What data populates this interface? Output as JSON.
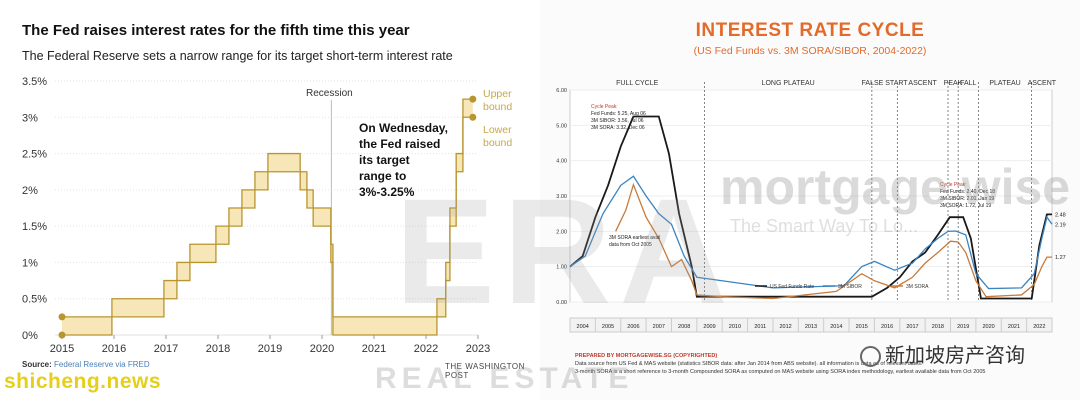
{
  "left": {
    "title": "The Fed raises interest rates for the fifth time this year",
    "subtitle": "The Federal Reserve sets a narrow range for its target short-term interest rate",
    "source_label": "Source:",
    "source_value": "Federal Reserve via FRED",
    "credit": "THE WASHINGTON POST"
  },
  "right": {
    "title": "INTEREST RATE CYCLE",
    "subtitle": "(US Fed Funds vs. 3M SORA/SIBOR, 2004-2022)",
    "footer_label": "PREPARED BY MORTGAGEWISE.SG (COPYRIGHTED)",
    "footer_lines": [
      "Data source from US Fed & MAS website (statistics SIBOR data: after Jan 2014 from ABS website). all information is data as of relevant dates.",
      "3-month SORA is a short reference to 3-month Compounded SORA as computed on MAS website using SORA index methodology, earliest available data from Oct 2005"
    ]
  },
  "watermarks": {
    "era": "ERA",
    "real_estate": "REAL ESTATE",
    "mortgage": "mortgage wise",
    "tagline": "The Smart Way To Lo...",
    "site": "shicheng.news",
    "wechat": "新加坡房产咨询"
  },
  "colors": {
    "fed_line": "#b8952f",
    "fed_fill": "#f7e7b8",
    "fed_label": "#c8a84b",
    "orange_title": "#e26b2c",
    "fedfunds": "#1a1a1a",
    "sibor": "#3b83c0",
    "sora": "#c77a3a",
    "phase_line": "#333333"
  },
  "chart_data": [
    {
      "type": "area",
      "title": "The Fed raises interest rates for the fifth time this year",
      "subtitle": "The Federal Reserve sets a narrow range for its target short-term interest rate",
      "x_ticks": [
        "2015",
        "2016",
        "2017",
        "2018",
        "2019",
        "2020",
        "2021",
        "2022",
        "2023"
      ],
      "y_ticks": [
        "0%",
        "0.5%",
        "1%",
        "1.5%",
        "2%",
        "2.5%",
        "3%",
        "3.5%"
      ],
      "ylim": [
        0,
        3.5
      ],
      "xlim": [
        2015,
        2023
      ],
      "grid": true,
      "series": [
        {
          "name": "Upper bound",
          "x": [
            2015.0,
            2015.96,
            2016.96,
            2017.21,
            2017.46,
            2017.96,
            2018.21,
            2018.46,
            2018.71,
            2018.96,
            2019.58,
            2019.71,
            2019.83,
            2020.17,
            2020.21,
            2022.21,
            2022.38,
            2022.46,
            2022.58,
            2022.71,
            2022.9
          ],
          "y": [
            0.25,
            0.5,
            0.75,
            1.0,
            1.25,
            1.5,
            1.75,
            2.0,
            2.25,
            2.5,
            2.25,
            2.0,
            1.75,
            1.25,
            0.25,
            0.5,
            1.0,
            1.75,
            2.5,
            3.25,
            3.25
          ]
        },
        {
          "name": "Lower bound",
          "x": [
            2015.0,
            2015.96,
            2016.96,
            2017.21,
            2017.46,
            2017.96,
            2018.21,
            2018.46,
            2018.71,
            2018.96,
            2019.58,
            2019.71,
            2019.83,
            2020.17,
            2020.21,
            2022.21,
            2022.38,
            2022.46,
            2022.58,
            2022.71,
            2022.9
          ],
          "y": [
            0.0,
            0.25,
            0.5,
            0.75,
            1.0,
            1.25,
            1.5,
            1.75,
            2.0,
            2.25,
            2.0,
            1.75,
            1.5,
            1.0,
            0.0,
            0.25,
            0.75,
            1.5,
            2.25,
            3.0,
            3.0
          ]
        }
      ],
      "annotations": {
        "recession": "Recession",
        "callout": [
          "On Wednesday,",
          "the Fed raised",
          "its target",
          "range to",
          "3%-3.25%"
        ],
        "upper_label": [
          "Upper",
          "bound"
        ],
        "lower_label": [
          "Lower",
          "bound"
        ]
      }
    },
    {
      "type": "line",
      "title": "INTEREST RATE CYCLE",
      "subtitle": "(US Fed Funds vs. 3M SORA/SIBOR, 2004-2022)",
      "y_ticks": [
        "0.00",
        "1.00",
        "2.00",
        "3.00",
        "4.00",
        "5.00",
        "6.00"
      ],
      "ylim": [
        0,
        6
      ],
      "xlim": [
        2004,
        2023
      ],
      "x_ticks": [
        "2004",
        "2005",
        "2006",
        "2007",
        "2008",
        "2009",
        "2010",
        "2011",
        "2012",
        "2013",
        "2014",
        "2015",
        "2016",
        "2017",
        "2018",
        "2019",
        "2020",
        "2021",
        "2022"
      ],
      "phases": [
        {
          "label": "FULL CYCLE",
          "start": 2004,
          "end": 2009.3
        },
        {
          "label": "LONG PLATEAU",
          "start": 2009.3,
          "end": 2015.9
        },
        {
          "label": "FALSE START",
          "start": 2015.9,
          "end": 2016.9
        },
        {
          "label": "ASCENT",
          "start": 2016.9,
          "end": 2018.9
        },
        {
          "label": "PEAK",
          "start": 2018.9,
          "end": 2019.3
        },
        {
          "label": "FALL",
          "start": 2019.3,
          "end": 2020.1
        },
        {
          "label": "PLATEAU",
          "start": 2020.1,
          "end": 2022.2
        },
        {
          "label": "ASCENT",
          "start": 2022.2,
          "end": 2023
        }
      ],
      "series": [
        {
          "name": "US Fed Funds Rate",
          "x": [
            2004.0,
            2004.5,
            2005.0,
            2005.5,
            2006.0,
            2006.5,
            2007.0,
            2007.5,
            2007.9,
            2008.3,
            2008.8,
            2009.0,
            2015.9,
            2016.5,
            2017.0,
            2017.5,
            2018.0,
            2018.5,
            2018.97,
            2019.5,
            2019.8,
            2020.2,
            2022.2,
            2022.5,
            2022.8,
            2023.0
          ],
          "y": [
            1.0,
            1.3,
            2.4,
            3.3,
            4.4,
            5.25,
            5.25,
            5.25,
            4.2,
            2.5,
            1.0,
            0.15,
            0.15,
            0.4,
            0.7,
            1.15,
            1.4,
            1.9,
            2.4,
            2.4,
            1.8,
            0.1,
            0.1,
            1.6,
            2.48,
            2.48
          ]
        },
        {
          "name": "3M SIBOR",
          "x": [
            2004.0,
            2004.6,
            2005.3,
            2006.0,
            2006.5,
            2007.0,
            2007.5,
            2008.0,
            2008.5,
            2009.0,
            2009.5,
            2012.0,
            2014.8,
            2015.5,
            2016.0,
            2016.8,
            2017.5,
            2018.0,
            2018.5,
            2018.9,
            2019.2,
            2019.6,
            2020.0,
            2020.5,
            2021.8,
            2022.3,
            2022.6,
            2022.8,
            2023.0
          ],
          "y": [
            1.0,
            1.3,
            2.5,
            3.3,
            3.56,
            3.0,
            2.5,
            2.2,
            1.3,
            0.7,
            0.65,
            0.4,
            0.46,
            1.0,
            1.15,
            0.9,
            1.1,
            1.5,
            1.8,
            2.0,
            2.01,
            1.9,
            0.8,
            0.38,
            0.4,
            0.8,
            1.8,
            2.4,
            2.2
          ]
        },
        {
          "name": "3M SORA",
          "x": [
            2005.8,
            2006.2,
            2006.5,
            2007.0,
            2007.5,
            2008.0,
            2008.4,
            2008.8,
            2009.0,
            2010.0,
            2012.0,
            2014.5,
            2015.5,
            2016.0,
            2016.8,
            2017.5,
            2018.0,
            2018.5,
            2019.0,
            2019.3,
            2019.6,
            2020.0,
            2020.4,
            2021.8,
            2022.3,
            2022.6,
            2022.8,
            2023.0
          ],
          "y": [
            2.0,
            2.6,
            3.32,
            2.4,
            1.8,
            1.0,
            1.2,
            0.6,
            0.2,
            0.15,
            0.1,
            0.3,
            0.8,
            0.6,
            0.4,
            0.7,
            1.1,
            1.4,
            1.72,
            1.7,
            1.4,
            0.6,
            0.15,
            0.2,
            0.5,
            1.0,
            1.27,
            1.27
          ]
        }
      ],
      "annotations": {
        "cycle_peak_1": [
          "Cycle Peak:",
          "Fed Funds: 5.25, Aug 06",
          "3M SIBOR: 3.56, Jul 06",
          "3M SORA: 3.32, Dec 06"
        ],
        "sora_note": [
          "3M SORA earliest avail",
          "data from Oct 2005"
        ],
        "cycle_peak_2": [
          "Cycle Peak:",
          "Fed Funds: 2.40, Dec 18",
          "3M SIBOR: 2.01, Jan 19",
          "3M SORA: 1.72, Jul 19"
        ],
        "end_values": [
          "2.48",
          "2.19",
          "1.27"
        ]
      }
    }
  ]
}
